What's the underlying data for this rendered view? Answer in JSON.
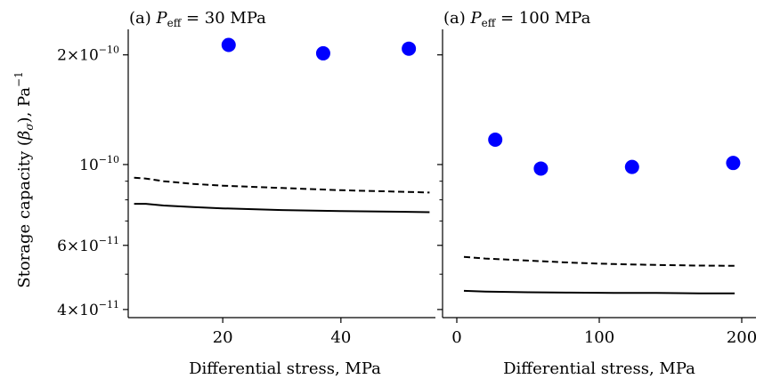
{
  "figure": {
    "ylabel_main": "Storage capacity (",
    "ylabel_beta": "β",
    "ylabel_sigma": "σ",
    "ylabel_tail": "), Pa",
    "ylabel_exp": "−1"
  },
  "chart_data": [
    {
      "type": "line",
      "title_prefix": "(a) ",
      "title_var": "P",
      "title_sub": "eff",
      "title_rest": " = 30 MPa",
      "xlabel": "Differential stress, MPa",
      "ylabel": "Storage capacity (βσ), Pa−1",
      "y_scale": "log",
      "xlim": [
        4,
        56
      ],
      "ylim": [
        3.8e-11,
        2.35e-10
      ],
      "xticks": [
        20,
        40
      ],
      "xtick_labels": [
        "20",
        "40"
      ],
      "ytick_labels": [
        {
          "value": 4e-11,
          "mant": "4",
          "exp": "−11"
        },
        {
          "value": 6e-11,
          "mant": "6",
          "exp": "−11"
        },
        {
          "value": 1e-10,
          "mant": "",
          "exp": "−10"
        },
        {
          "value": 2e-10,
          "mant": "2",
          "exp": "−10"
        }
      ],
      "y_minor_ticks": [
        5e-11,
        7e-11,
        8e-11,
        9e-11
      ],
      "grid": false,
      "series": [
        {
          "style": "dashed",
          "color": "#000000",
          "x": [
            5,
            7,
            10,
            15,
            20,
            30,
            40,
            50,
            55
          ],
          "y": [
            9.2e-11,
            9.15e-11,
            9e-11,
            8.85e-11,
            8.75e-11,
            8.62e-11,
            8.5e-11,
            8.42e-11,
            8.38e-11
          ]
        },
        {
          "style": "solid",
          "color": "#000000",
          "x": [
            5,
            7,
            10,
            15,
            20,
            30,
            40,
            50,
            55
          ],
          "y": [
            7.8e-11,
            7.8e-11,
            7.72e-11,
            7.64e-11,
            7.58e-11,
            7.5e-11,
            7.45e-11,
            7.42e-11,
            7.4e-11
          ]
        },
        {
          "style": "markers",
          "color": "#0000ff",
          "x": [
            21,
            37,
            51.5
          ],
          "y": [
            2.13e-10,
            2.02e-10,
            2.08e-10
          ]
        }
      ]
    },
    {
      "type": "line",
      "title_prefix": "(a) ",
      "title_var": "P",
      "title_sub": "eff",
      "title_rest": " = 100 MPa",
      "xlabel": "Differential stress, MPa",
      "ylabel": "",
      "y_scale": "log",
      "xlim": [
        -10,
        210
      ],
      "ylim": [
        3.8e-11,
        2.35e-10
      ],
      "xticks": [
        0,
        100,
        200
      ],
      "xtick_labels": [
        "0",
        "100",
        "200"
      ],
      "ytick_labels": [],
      "y_major_ticks": [
        4e-11,
        6e-11,
        1e-10,
        2e-10
      ],
      "y_minor_ticks": [
        5e-11,
        7e-11,
        8e-11,
        9e-11
      ],
      "grid": false,
      "series": [
        {
          "style": "dashed",
          "color": "#000000",
          "x": [
            5,
            20,
            50,
            80,
            110,
            140,
            170,
            195
          ],
          "y": [
            5.58e-11,
            5.52e-11,
            5.45e-11,
            5.38e-11,
            5.33e-11,
            5.3e-11,
            5.28e-11,
            5.27e-11
          ]
        },
        {
          "style": "solid",
          "color": "#000000",
          "x": [
            5,
            20,
            50,
            80,
            110,
            140,
            170,
            195
          ],
          "y": [
            4.5e-11,
            4.48e-11,
            4.46e-11,
            4.45e-11,
            4.44e-11,
            4.44e-11,
            4.43e-11,
            4.43e-11
          ]
        },
        {
          "style": "markers",
          "color": "#0000ff",
          "x": [
            27,
            59,
            123,
            194
          ],
          "y": [
            1.17e-10,
            9.75e-11,
            9.85e-11,
            1.01e-10
          ]
        }
      ]
    }
  ]
}
